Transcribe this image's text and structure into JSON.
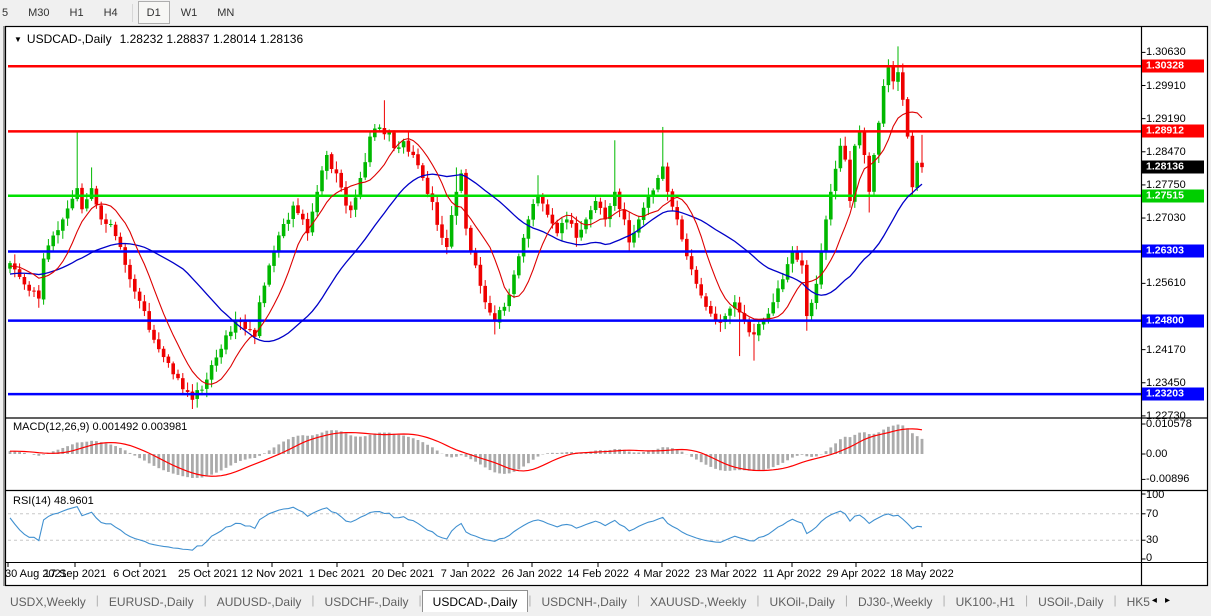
{
  "toolbar": {
    "timeframes": [
      "5",
      "M30",
      "H1",
      "H4",
      "D1",
      "W1",
      "MN"
    ],
    "active": "D1"
  },
  "chart_window": {
    "title": {
      "symbol": "USDCAD-,Daily",
      "ohlc": "1.28232 1.28837 1.28014 1.28136"
    },
    "price_axis": {
      "ticks": [
        {
          "label": "1.30630",
          "price": 1.3063
        },
        {
          "label": "1.29910",
          "price": 1.2991
        },
        {
          "label": "1.29190",
          "price": 1.2919
        },
        {
          "label": "1.28470",
          "price": 1.2847
        },
        {
          "label": "1.27750",
          "price": 1.2775
        },
        {
          "label": "1.27030",
          "price": 1.2703
        },
        {
          "label": "1.25610",
          "price": 1.2561
        },
        {
          "label": "1.24170",
          "price": 1.2417
        },
        {
          "label": "1.23450",
          "price": 1.2345
        },
        {
          "label": "1.22730",
          "price": 1.2273
        }
      ],
      "badges": [
        {
          "label": "1.30328",
          "price": 1.30328,
          "color": "#FF0000"
        },
        {
          "label": "1.28912",
          "price": 1.28912,
          "color": "#FF0000"
        },
        {
          "label": "1.28136",
          "price": 1.28136,
          "color": "#000000"
        },
        {
          "label": "1.27515",
          "price": 1.27515,
          "color": "#00CE00"
        },
        {
          "label": "1.26303",
          "price": 1.26303,
          "color": "#0000FF"
        },
        {
          "label": "1.24800",
          "price": 1.248,
          "color": "#0000FF"
        },
        {
          "label": "1.23203",
          "price": 1.23203,
          "color": "#0000FF"
        }
      ]
    },
    "levels": [
      {
        "price": 1.30328,
        "color": "#FF0000"
      },
      {
        "price": 1.28912,
        "color": "#FF0000"
      },
      {
        "price": 1.27515,
        "color": "#00E000"
      },
      {
        "price": 1.26303,
        "color": "#0000FF"
      },
      {
        "price": 1.248,
        "color": "#0000FF"
      },
      {
        "price": 1.23203,
        "color": "#0000FF"
      }
    ],
    "current_price": 1.28136,
    "date_axis": [
      "30 Aug 2021",
      "17 Sep 2021",
      "6 Oct 2021",
      "25 Oct 2021",
      "12 Nov 2021",
      "1 Dec 2021",
      "20 Dec 2021",
      "7 Jan 2022",
      "26 Jan 2022",
      "14 Feb 2022",
      "4 Mar 2022",
      "23 Mar 2022",
      "11 Apr 2022",
      "29 Apr 2022",
      "18 May 2022"
    ],
    "colors": {
      "bull": "#00B800",
      "bear": "#EE0000",
      "ma_fast": "#DD0000",
      "ma_slow": "#0000C8",
      "macd_hist": "#ABABAB",
      "macd_signal": "#FF0000",
      "rsi": "#4090D0",
      "grid_dash": "#C8C8C8"
    }
  },
  "macd_panel": {
    "label": "MACD(12,26,9)",
    "values": "0.001492 0.003981",
    "axis_ticks": [
      {
        "label": "0.010578",
        "value": 0.010578
      },
      {
        "label": "0.00",
        "value": 0
      },
      {
        "label": "-0.00896",
        "value": -0.00896
      }
    ]
  },
  "rsi_panel": {
    "label": "RSI(14)",
    "value": "48.9601",
    "axis_ticks": [
      {
        "label": "100",
        "value": 100
      },
      {
        "label": "70",
        "value": 70
      },
      {
        "label": "30",
        "value": 30
      },
      {
        "label": "0",
        "value": 0
      }
    ],
    "dashed_levels": [
      70,
      30
    ]
  },
  "tabs": {
    "items": [
      "USDX,Weekly",
      "EURUSD-,Daily",
      "AUDUSD-,Daily",
      "USDCHF-,Daily",
      "USDCAD-,Daily",
      "USDCNH-,Daily",
      "XAUUSD-,Weekly",
      "UKOil-,Daily",
      "DJ30-,Weekly",
      "UK100-,H1",
      "USOil-,Daily",
      "HK5"
    ],
    "active": "USDCAD-,Daily",
    "scroll_left": "◂",
    "scroll_right": "▸"
  },
  "chart_data": {
    "type": "candlestick",
    "symbol": "USDCAD",
    "timeframe": "Daily",
    "bars": 191,
    "last_ohlc": {
      "open": 1.28232,
      "high": 1.28837,
      "low": 1.28014,
      "close": 1.28136
    },
    "price_waypoints": [
      [
        0,
        1.2605
      ],
      [
        2,
        1.2575
      ],
      [
        4,
        1.2545
      ],
      [
        6,
        1.2528
      ],
      [
        7,
        1.2615
      ],
      [
        9,
        1.2665
      ],
      [
        11,
        1.27
      ],
      [
        13,
        1.2745
      ],
      [
        14,
        1.2768
      ],
      [
        15,
        1.2722
      ],
      [
        17,
        1.2768
      ],
      [
        19,
        1.27
      ],
      [
        21,
        1.269
      ],
      [
        23,
        1.264
      ],
      [
        25,
        1.257
      ],
      [
        27,
        1.2523
      ],
      [
        29,
        1.246
      ],
      [
        31,
        1.2418
      ],
      [
        33,
        1.2388
      ],
      [
        35,
        1.2355
      ],
      [
        37,
        1.2325
      ],
      [
        38,
        1.2308
      ],
      [
        40,
        1.233
      ],
      [
        41,
        1.2352
      ],
      [
        43,
        1.24
      ],
      [
        45,
        1.2448
      ],
      [
        47,
        1.248
      ],
      [
        49,
        1.2462
      ],
      [
        51,
        1.2445
      ],
      [
        52,
        1.252
      ],
      [
        54,
        1.26
      ],
      [
        55,
        1.263
      ],
      [
        57,
        1.269
      ],
      [
        59,
        1.273
      ],
      [
        61,
        1.27
      ],
      [
        62,
        1.267
      ],
      [
        64,
        1.276
      ],
      [
        66,
        1.284
      ],
      [
        68,
        1.28
      ],
      [
        70,
        1.273
      ],
      [
        71,
        1.272
      ],
      [
        73,
        1.279
      ],
      [
        75,
        1.288
      ],
      [
        77,
        1.29
      ],
      [
        79,
        1.289
      ],
      [
        80,
        1.2855
      ],
      [
        82,
        1.287
      ],
      [
        84,
        1.284
      ],
      [
        86,
        1.279
      ],
      [
        88,
        1.2738
      ],
      [
        90,
        1.266
      ],
      [
        91,
        1.264
      ],
      [
        93,
        1.276
      ],
      [
        94,
        1.28
      ],
      [
        95,
        1.268
      ],
      [
        97,
        1.26
      ],
      [
        99,
        1.252
      ],
      [
        101,
        1.2478
      ],
      [
        103,
        1.251
      ],
      [
        105,
        1.258
      ],
      [
        107,
        1.266
      ],
      [
        108,
        1.27
      ],
      [
        110,
        1.275
      ],
      [
        112,
        1.271
      ],
      [
        114,
        1.267
      ],
      [
        116,
        1.27
      ],
      [
        118,
        1.266
      ],
      [
        120,
        1.27
      ],
      [
        122,
        1.274
      ],
      [
        124,
        1.27
      ],
      [
        126,
        1.276
      ],
      [
        128,
        1.27
      ],
      [
        129,
        1.265
      ],
      [
        131,
        1.27
      ],
      [
        133,
        1.275
      ],
      [
        135,
        1.279
      ],
      [
        136,
        1.2815
      ],
      [
        137,
        1.276
      ],
      [
        139,
        1.27
      ],
      [
        141,
        1.262
      ],
      [
        143,
        1.256
      ],
      [
        145,
        1.251
      ],
      [
        147,
        1.248
      ],
      [
        149,
        1.249
      ],
      [
        151,
        1.252
      ],
      [
        153,
        1.248
      ],
      [
        155,
        1.245
      ],
      [
        157,
        1.248
      ],
      [
        159,
        1.252
      ],
      [
        161,
        1.257
      ],
      [
        163,
        1.263
      ],
      [
        165,
        1.26
      ],
      [
        166,
        1.249
      ],
      [
        168,
        1.256
      ],
      [
        170,
        1.27
      ],
      [
        171,
        1.276
      ],
      [
        172,
        1.281
      ],
      [
        173,
        1.286
      ],
      [
        174,
        1.283
      ],
      [
        175,
        1.274
      ],
      [
        176,
        1.286
      ],
      [
        177,
        1.289
      ],
      [
        178,
        1.284
      ],
      [
        179,
        1.276
      ],
      [
        180,
        1.284
      ],
      [
        181,
        1.291
      ],
      [
        182,
        1.299
      ],
      [
        183,
        1.303
      ],
      [
        184,
        1.3
      ],
      [
        185,
        1.302
      ],
      [
        186,
        1.296
      ],
      [
        187,
        1.288
      ],
      [
        188,
        1.277
      ],
      [
        189,
        1.2823
      ],
      [
        190,
        1.28136
      ]
    ],
    "wick_overrides": {
      "6": {
        "low": 1.2508
      },
      "14": {
        "high": 1.289
      },
      "17": {
        "high": 1.2813
      },
      "38": {
        "low": 1.2288
      },
      "78": {
        "high": 1.2959
      },
      "93": {
        "high": 1.2813
      },
      "101": {
        "low": 1.245
      },
      "110": {
        "high": 1.2796
      },
      "126": {
        "high": 1.2872
      },
      "136": {
        "high": 1.2901
      },
      "152": {
        "low": 1.2403
      },
      "155": {
        "low": 1.2393
      },
      "166": {
        "low": 1.2458
      },
      "175": {
        "low": 1.2728
      },
      "179": {
        "low": 1.2715
      },
      "183": {
        "high": 1.3048
      },
      "185": {
        "high": 1.3076
      },
      "188": {
        "low": 1.2759
      }
    },
    "indicators": {
      "ma_fast_period": 9,
      "ma_slow_period": 30,
      "macd": "12,26,9",
      "rsi_period": 14
    }
  }
}
